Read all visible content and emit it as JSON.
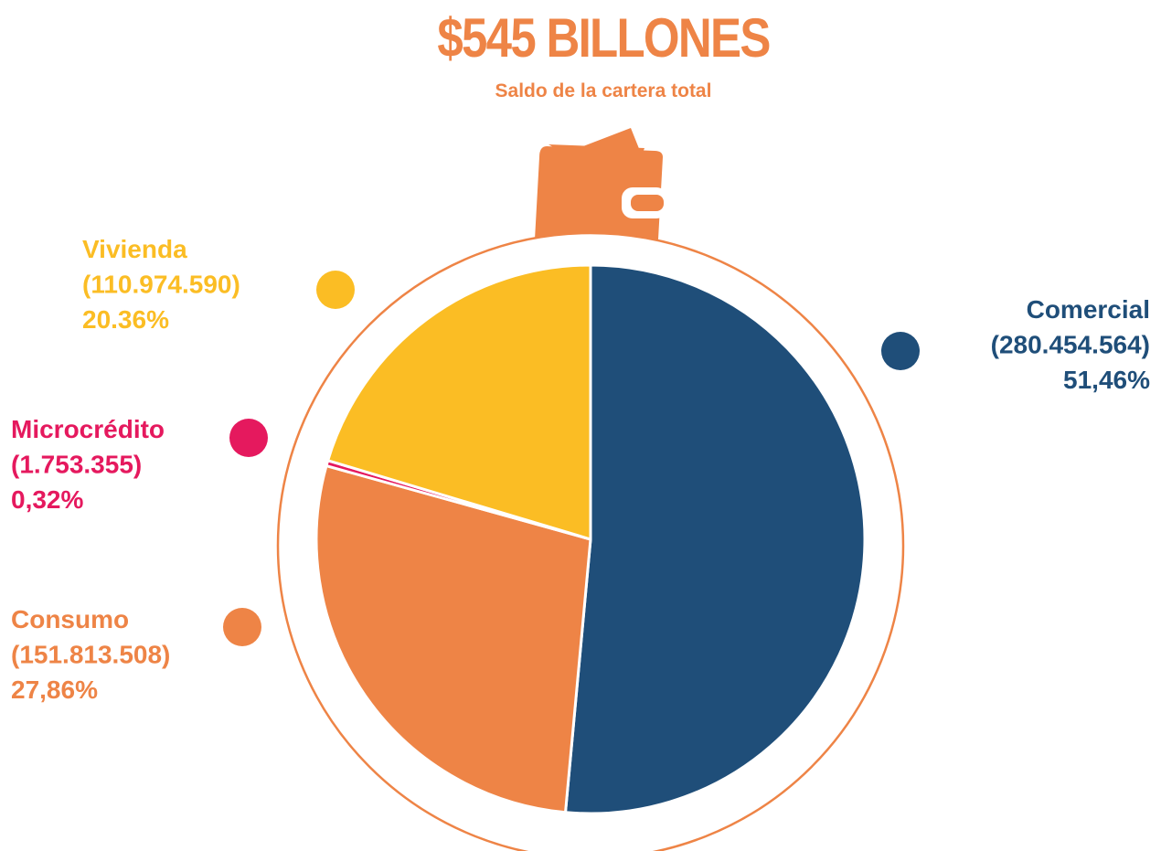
{
  "chart_data": {
    "type": "pie",
    "title": "$545 BILLONES",
    "subtitle": "Saldo de la cartera total",
    "categories": [
      "Comercial",
      "Consumo",
      "Microcrédito",
      "Vivienda"
    ],
    "values": [
      51.46,
      27.86,
      0.32,
      20.36
    ],
    "value_labels": [
      "51,46%",
      "27,86%",
      "0,32%",
      "20.36%"
    ],
    "amounts": [
      280454564,
      151813508,
      1753355,
      110974590
    ],
    "amount_labels": [
      "(280.454.564)",
      "(151.813.508)",
      "(1.753.355)",
      "(110.974.590)"
    ],
    "colors": [
      "#1f4e79",
      "#ee8446",
      "#e5195e",
      "#fbbd24"
    ]
  }
}
